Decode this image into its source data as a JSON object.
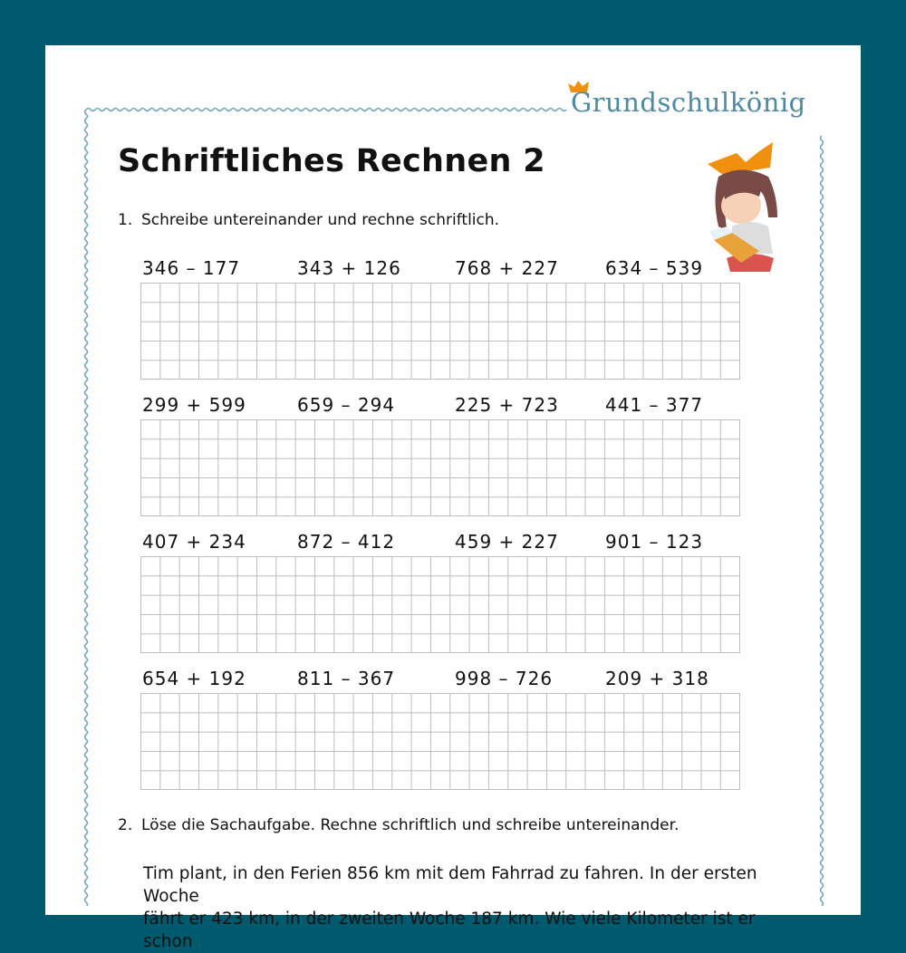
{
  "brand": {
    "logo_text": "Grundschulkönig",
    "accent_color": "#4f8aa2",
    "crown_color": "#f0900f",
    "frame_color": "#005a6d"
  },
  "worksheet": {
    "title": "Schriftliches Rechnen 2",
    "task1": {
      "number": "1.",
      "instruction": "Schreibe untereinander und rechne schriftlich.",
      "rows": [
        [
          "346 – 177",
          "343 + 126",
          "768 + 227",
          "634 – 539"
        ],
        [
          "299 + 599",
          "659 – 294",
          "225 + 723",
          "441 – 377"
        ],
        [
          "407 + 234",
          "872 – 412",
          "459 + 227",
          "901 – 123"
        ],
        [
          "654 + 192",
          "811 – 367",
          "998 – 726",
          "209 + 318"
        ]
      ]
    },
    "task2": {
      "number": "2.",
      "instruction": "Löse die Sachaufgabe. Rechne schriftlich und schreibe untereinander.",
      "story_line1": "Tim plant, in den Ferien 856 km mit dem Fahrrad zu fahren. In der ersten Woche",
      "story_line2": "fährt er 423 km, in der zweiten Woche 187 km. Wie viele Kilometer ist er schon"
    }
  },
  "illustration": {
    "icon": "girl-reading-with-crown-icon"
  }
}
